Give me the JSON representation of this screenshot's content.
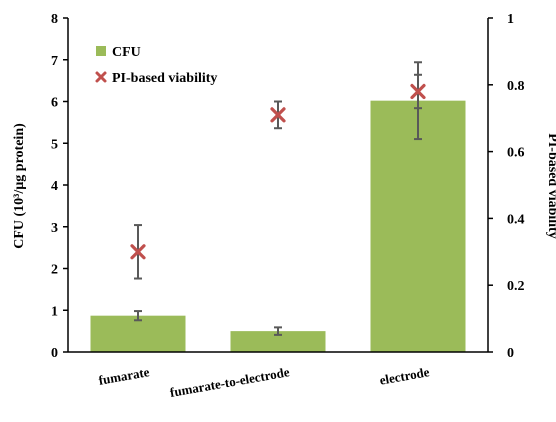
{
  "chart_data": {
    "type": "bar",
    "categories": [
      "fumarate",
      "fumarate-to-electrode",
      "electrode"
    ],
    "series": [
      {
        "name": "CFU",
        "axis": "left",
        "kind": "bar",
        "values": [
          0.87,
          0.5,
          6.02
        ],
        "error": [
          0.11,
          0.09,
          0.92
        ]
      },
      {
        "name": "PI-based viability",
        "axis": "right",
        "kind": "marker",
        "marker": "x",
        "values": [
          0.3,
          0.71,
          0.78
        ],
        "error": [
          0.08,
          0.04,
          0.05
        ]
      }
    ],
    "ylabel": "CFU (10³/µg protein)",
    "y2label": "PI-based viability",
    "ylim": [
      0,
      8
    ],
    "y2lim": [
      0,
      1
    ],
    "yticks": [
      "0",
      "1",
      "2",
      "3",
      "4",
      "5",
      "6",
      "7",
      "8"
    ],
    "y2ticks": [
      "0",
      "0.2",
      "0.4",
      "0.6",
      "0.8",
      "1"
    ],
    "legend_position": "top-left",
    "grid": false,
    "colors": {
      "bar": "#9bbb59",
      "marker": "#c0504d",
      "errorbar": "#595959",
      "axis": "#000000"
    }
  }
}
